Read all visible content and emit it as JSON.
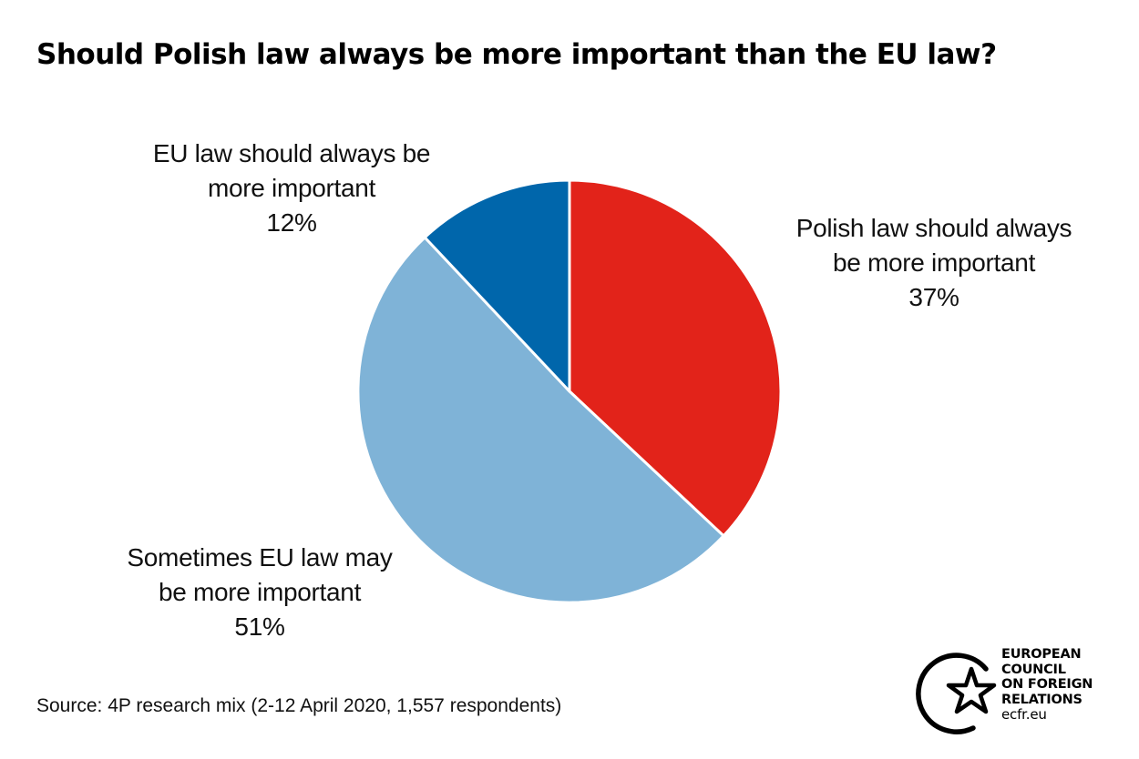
{
  "chart_data": {
    "type": "pie",
    "title": "Should Polish law always be more important than the EU law?",
    "slices": [
      {
        "label_lines": [
          "Polish law should always",
          "be more important"
        ],
        "value": 37,
        "value_label": "37%",
        "color": "#e2231a"
      },
      {
        "label_lines": [
          "Sometimes EU law may",
          "be more important"
        ],
        "value": 51,
        "value_label": "51%",
        "color": "#7fb3d7"
      },
      {
        "label_lines": [
          "EU law should always be",
          "more important"
        ],
        "value": 12,
        "value_label": "12%",
        "color": "#0066ab"
      }
    ],
    "start": "12 o'clock",
    "direction": "clockwise"
  },
  "source": "Source: 4P research mix (2-12 April 2020, 1,557 respondents)",
  "logo": {
    "lines": [
      "EUROPEAN",
      "COUNCIL",
      "ON FOREIGN",
      "RELATIONS"
    ],
    "url": "ecfr.eu"
  }
}
